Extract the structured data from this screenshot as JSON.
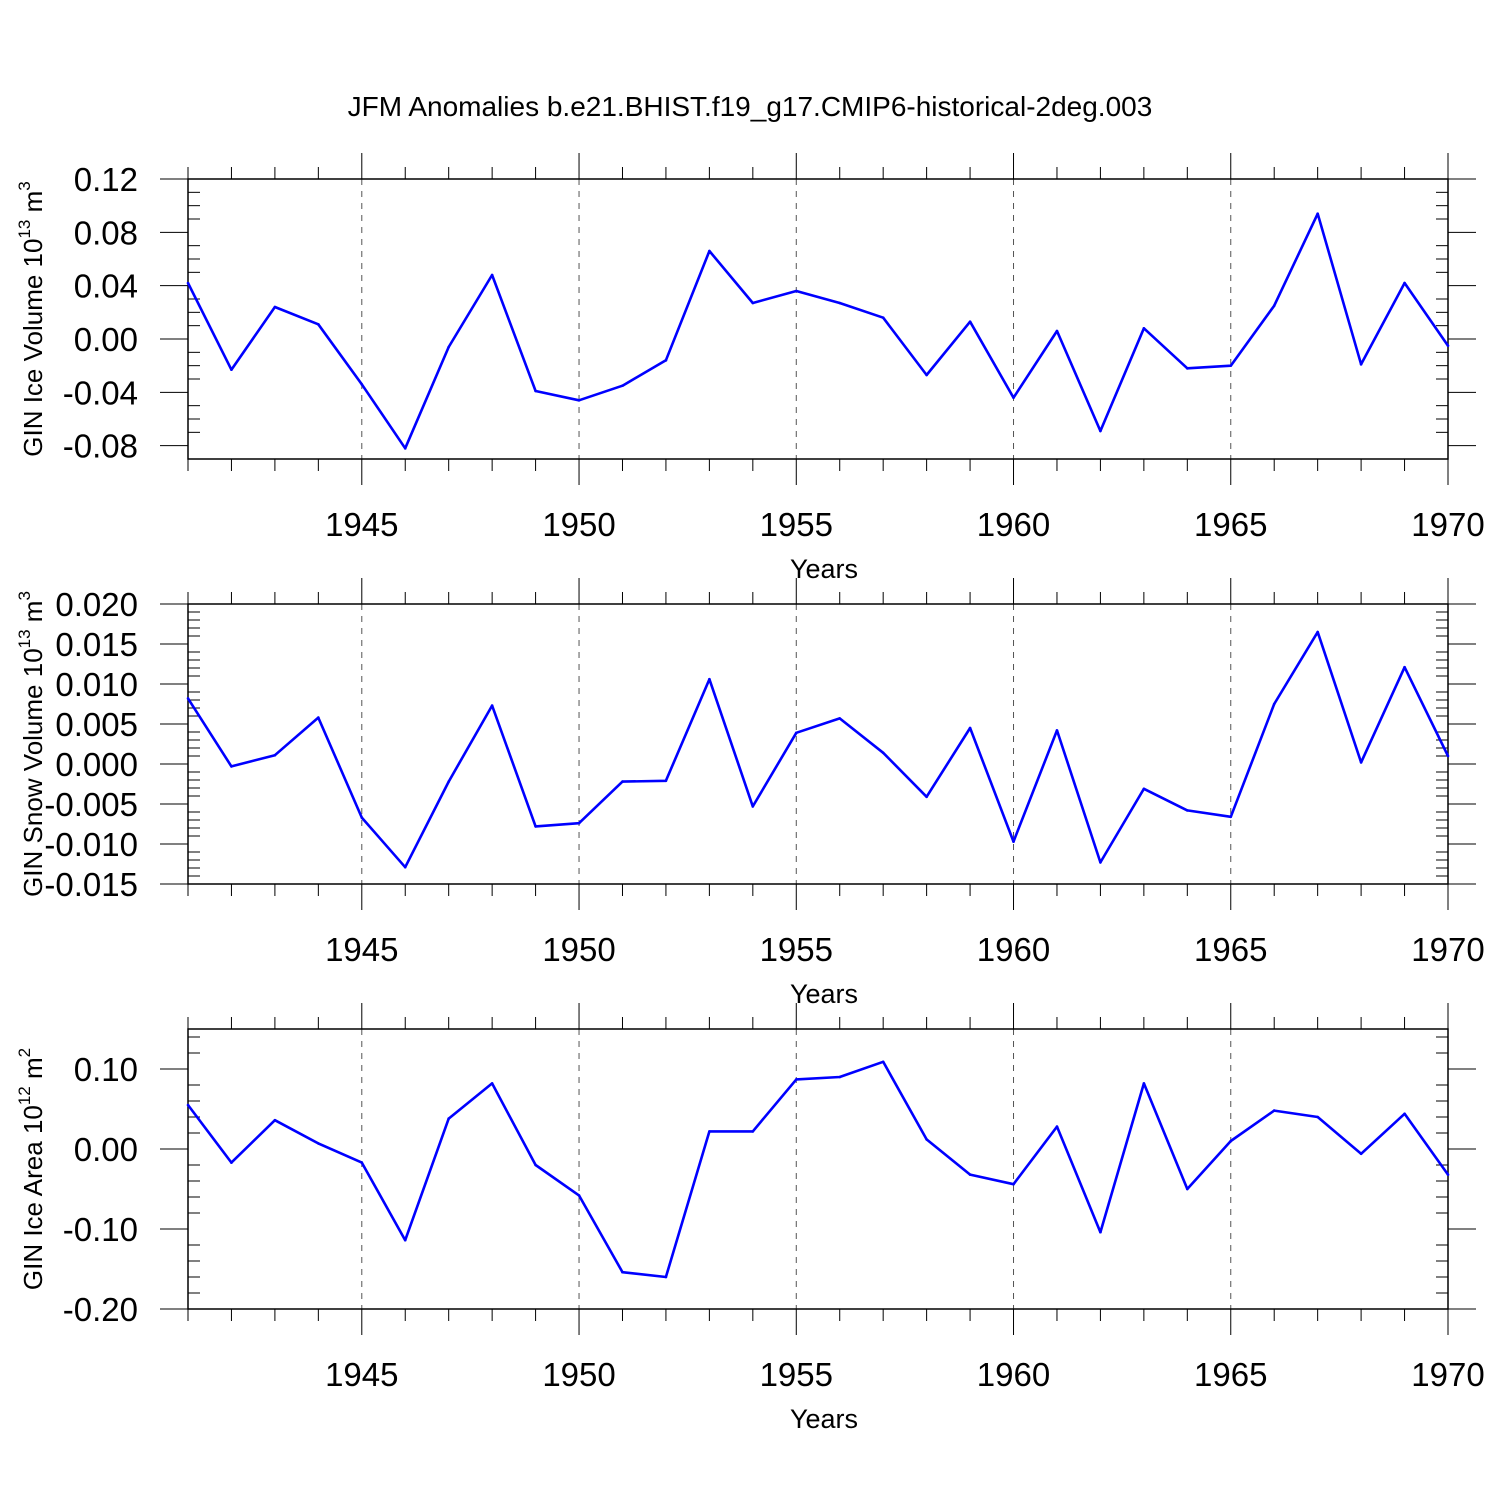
{
  "title": "JFM Anomalies b.e21.BHIST.f19_g17.CMIP6-historical-2deg.003",
  "style": {
    "line_color": "#0000ff",
    "axis_color": "#000000",
    "grid_color": "#555555"
  },
  "chart_data": [
    {
      "type": "line",
      "ylabel": "GIN Ice Volume 10",
      "ylabel_exp": "13",
      "ylabel_unit": " m",
      "ylabel_unit_exp": "3",
      "xlabel": "Years",
      "xlim": [
        1941,
        1970
      ],
      "ylim": [
        -0.09,
        0.12
      ],
      "yticks": [
        -0.08,
        -0.04,
        0.0,
        0.04,
        0.08,
        0.12
      ],
      "ytick_labels": [
        "-0.08",
        "-0.04",
        "0.00",
        "0.04",
        "0.08",
        "0.12"
      ],
      "yminor_step": 0.01,
      "xticks": [
        1945,
        1950,
        1955,
        1960,
        1965,
        1970
      ],
      "xtick_labels": [
        "1945",
        "1950",
        "1955",
        "1960",
        "1965",
        "1970"
      ],
      "grid": "vertical-dashed",
      "x": [
        1941,
        1942,
        1943,
        1944,
        1945,
        1946,
        1947,
        1948,
        1949,
        1950,
        1951,
        1952,
        1953,
        1954,
        1955,
        1956,
        1957,
        1958,
        1959,
        1960,
        1961,
        1962,
        1963,
        1964,
        1965,
        1966,
        1967,
        1968,
        1969,
        1970
      ],
      "values": [
        0.042,
        -0.023,
        0.024,
        0.011,
        -0.034,
        -0.082,
        -0.006,
        0.048,
        -0.039,
        -0.046,
        -0.035,
        -0.016,
        0.066,
        0.027,
        0.036,
        0.027,
        0.016,
        -0.027,
        0.013,
        -0.044,
        0.006,
        -0.069,
        0.008,
        -0.022,
        -0.02,
        0.025,
        0.094,
        -0.019,
        0.042,
        -0.005
      ]
    },
    {
      "type": "line",
      "ylabel": "GIN Snow Volume 10",
      "ylabel_exp": "13",
      "ylabel_unit": " m",
      "ylabel_unit_exp": "3",
      "xlabel": "Years",
      "xlim": [
        1941,
        1970
      ],
      "ylim": [
        -0.015,
        0.02
      ],
      "yticks": [
        -0.015,
        -0.01,
        -0.005,
        0.0,
        0.005,
        0.01,
        0.015,
        0.02
      ],
      "ytick_labels": [
        "-0.015",
        "-0.010",
        "-0.005",
        "0.000",
        "0.005",
        "0.010",
        "0.015",
        "0.020"
      ],
      "yminor_step": 0.001,
      "xticks": [
        1945,
        1950,
        1955,
        1960,
        1965,
        1970
      ],
      "xtick_labels": [
        "1945",
        "1950",
        "1955",
        "1960",
        "1965",
        "1970"
      ],
      "grid": "vertical-dashed",
      "x": [
        1941,
        1942,
        1943,
        1944,
        1945,
        1946,
        1947,
        1948,
        1949,
        1950,
        1951,
        1952,
        1953,
        1954,
        1955,
        1956,
        1957,
        1958,
        1959,
        1960,
        1961,
        1962,
        1963,
        1964,
        1965,
        1966,
        1967,
        1968,
        1969,
        1970
      ],
      "values": [
        0.0082,
        -0.0003,
        0.0011,
        0.0058,
        -0.0067,
        -0.0129,
        -0.0022,
        0.0073,
        -0.0078,
        -0.0074,
        -0.0022,
        -0.0021,
        0.0106,
        -0.0053,
        0.0039,
        0.0057,
        0.0014,
        -0.0041,
        0.0045,
        -0.0097,
        0.0042,
        -0.0123,
        -0.0031,
        -0.0058,
        -0.0066,
        0.0075,
        0.0165,
        0.0002,
        0.0121,
        0.001
      ]
    },
    {
      "type": "line",
      "ylabel": "GIN Ice Area 10",
      "ylabel_exp": "12",
      "ylabel_unit": " m",
      "ylabel_unit_exp": "2",
      "xlabel": "Years",
      "xlim": [
        1941,
        1970
      ],
      "ylim": [
        -0.2,
        0.15
      ],
      "yticks": [
        -0.2,
        -0.1,
        0.0,
        0.1
      ],
      "ytick_labels": [
        "-0.20",
        "-0.10",
        "0.00",
        "0.10"
      ],
      "yminor_step": 0.02,
      "xticks": [
        1945,
        1950,
        1955,
        1960,
        1965,
        1970
      ],
      "xtick_labels": [
        "1945",
        "1950",
        "1955",
        "1960",
        "1965",
        "1970"
      ],
      "grid": "vertical-dashed",
      "x": [
        1941,
        1942,
        1943,
        1944,
        1945,
        1946,
        1947,
        1948,
        1949,
        1950,
        1951,
        1952,
        1953,
        1954,
        1955,
        1956,
        1957,
        1958,
        1959,
        1960,
        1961,
        1962,
        1963,
        1964,
        1965,
        1966,
        1967,
        1968,
        1969,
        1970
      ],
      "values": [
        0.055,
        -0.017,
        0.036,
        0.007,
        -0.017,
        -0.114,
        0.038,
        0.082,
        -0.02,
        -0.058,
        -0.154,
        -0.16,
        0.022,
        0.022,
        0.087,
        0.09,
        0.109,
        0.012,
        -0.032,
        -0.044,
        0.028,
        -0.104,
        0.082,
        -0.05,
        0.01,
        0.048,
        0.04,
        -0.006,
        0.044,
        -0.032
      ]
    }
  ]
}
